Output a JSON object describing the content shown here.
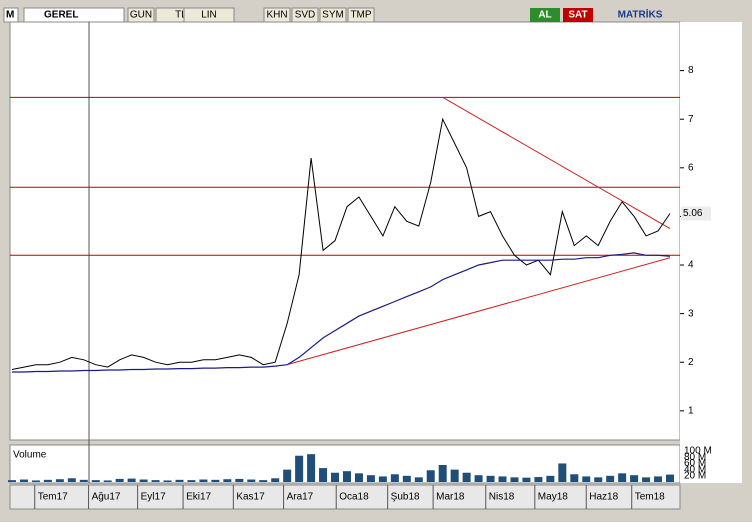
{
  "toolbar": {
    "menu": "GEREL",
    "buttons": [
      "GUN",
      "TL",
      "LIN",
      "KHN",
      "SVD",
      "SYM",
      "TMP"
    ],
    "buy": "AL",
    "sell": "SAT",
    "brand": "MATRİKS"
  },
  "chart_data": [
    {
      "type": "line",
      "x": [
        0,
        1,
        2,
        3,
        4,
        5,
        6,
        7,
        8,
        9,
        10,
        11,
        12,
        13,
        14,
        15,
        16,
        17,
        18,
        19,
        20,
        21,
        22,
        23,
        24,
        25,
        26,
        27,
        28,
        29,
        30,
        31,
        32,
        33,
        34,
        35,
        36,
        37,
        38,
        39,
        40,
        41,
        42,
        43,
        44,
        45,
        46,
        47,
        48,
        49,
        50,
        51,
        52,
        53,
        54,
        55
      ],
      "series": [
        {
          "color": "#000000",
          "values": [
            1.85,
            1.9,
            1.95,
            1.95,
            2.0,
            2.1,
            2.05,
            1.95,
            1.9,
            2.05,
            2.15,
            2.1,
            2.0,
            1.95,
            2.0,
            2.0,
            2.05,
            2.05,
            2.1,
            2.15,
            2.1,
            1.95,
            2.0,
            2.8,
            3.8,
            6.2,
            4.3,
            4.5,
            5.2,
            5.4,
            5.0,
            4.6,
            5.2,
            4.9,
            4.8,
            5.7,
            7.0,
            6.5,
            6.0,
            5.0,
            5.1,
            4.6,
            4.2,
            4.0,
            4.1,
            3.8,
            5.1,
            4.4,
            4.6,
            4.4,
            4.9,
            5.3,
            5.0,
            4.6,
            4.7,
            5.06
          ]
        },
        {
          "color": "#1a1a8c",
          "values": [
            1.8,
            1.8,
            1.81,
            1.81,
            1.82,
            1.82,
            1.83,
            1.83,
            1.84,
            1.84,
            1.85,
            1.85,
            1.86,
            1.86,
            1.87,
            1.87,
            1.88,
            1.88,
            1.89,
            1.89,
            1.9,
            1.9,
            1.92,
            1.95,
            2.1,
            2.3,
            2.5,
            2.65,
            2.8,
            2.95,
            3.05,
            3.15,
            3.25,
            3.35,
            3.45,
            3.55,
            3.7,
            3.8,
            3.9,
            4.0,
            4.05,
            4.1,
            4.1,
            4.1,
            4.1,
            4.1,
            4.12,
            4.12,
            4.15,
            4.15,
            4.2,
            4.22,
            4.25,
            4.2,
            4.2,
            4.18
          ]
        }
      ],
      "hlines": [
        7.45,
        5.6,
        4.2
      ],
      "trendlines": [
        {
          "x": [
            36,
            55
          ],
          "y": [
            7.45,
            4.75
          ]
        },
        {
          "x": [
            23,
            55
          ],
          "y": [
            1.95,
            4.15
          ]
        }
      ],
      "xlim": [
        0,
        55
      ],
      "xticks": [
        {
          "value": 1.9,
          "label": "Tem17"
        },
        {
          "value": 6.4,
          "label": "Ağu17"
        },
        {
          "value": 10.5,
          "label": "Eyl17"
        },
        {
          "value": 14.3,
          "label": "Eki17"
        },
        {
          "value": 18.5,
          "label": "Kas17"
        },
        {
          "value": 22.7,
          "label": "Ara17"
        },
        {
          "value": 27.1,
          "label": "Oca18"
        },
        {
          "value": 31.4,
          "label": "Şub18"
        },
        {
          "value": 35.2,
          "label": "Mar18"
        },
        {
          "value": 39.6,
          "label": "Nis18"
        },
        {
          "value": 43.7,
          "label": "May18"
        },
        {
          "value": 48,
          "label": "Haz18"
        },
        {
          "value": 51.8,
          "label": "Tem18"
        }
      ],
      "ylim": [
        0.4,
        9
      ],
      "yticks": [
        1,
        2,
        3,
        4,
        5,
        6,
        7,
        8
      ]
    },
    {
      "type": "bar",
      "title": "Volume",
      "color": "#1f4e79",
      "values": [
        6,
        8,
        5,
        7,
        9,
        12,
        7,
        6,
        5,
        10,
        11,
        8,
        6,
        5,
        7,
        6,
        8,
        7,
        9,
        10,
        8,
        6,
        12,
        40,
        85,
        90,
        45,
        30,
        35,
        28,
        22,
        18,
        25,
        20,
        15,
        38,
        55,
        40,
        30,
        22,
        20,
        18,
        15,
        14,
        16,
        20,
        60,
        25,
        18,
        15,
        20,
        28,
        22,
        15,
        18,
        24
      ],
      "ylim": [
        0,
        110
      ],
      "yticks": [
        {
          "value": 100,
          "label": "100 M"
        },
        {
          "value": 80,
          "label": "80 M"
        },
        {
          "value": 60,
          "label": "60 M"
        },
        {
          "value": 40,
          "label": "40 M"
        },
        {
          "value": 20,
          "label": "20 M"
        }
      ]
    }
  ]
}
